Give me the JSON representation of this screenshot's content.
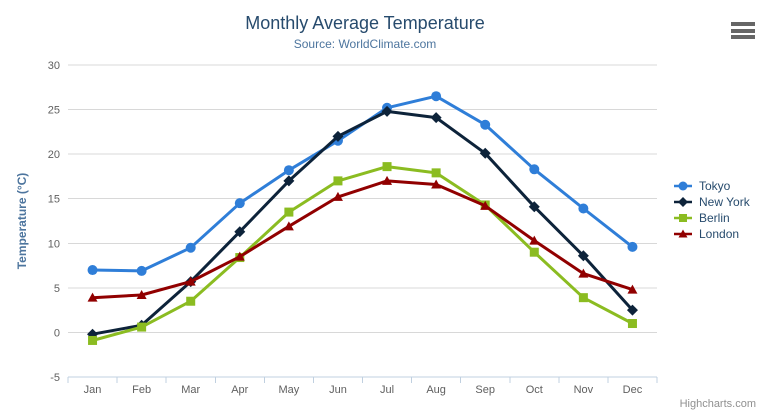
{
  "header": {
    "title": "Monthly Average Temperature",
    "subtitle": "Source: WorldClimate.com"
  },
  "credit": "Highcharts.com",
  "chart_data": {
    "type": "line",
    "title": "Monthly Average Temperature",
    "subtitle": "Source: WorldClimate.com",
    "categories": [
      "Jan",
      "Feb",
      "Mar",
      "Apr",
      "May",
      "Jun",
      "Jul",
      "Aug",
      "Sep",
      "Oct",
      "Nov",
      "Dec"
    ],
    "series": [
      {
        "name": "Tokyo",
        "color": "#2f7ed8",
        "marker": "circle",
        "values": [
          7.0,
          6.9,
          9.5,
          14.5,
          18.2,
          21.5,
          25.2,
          26.5,
          23.3,
          18.3,
          13.9,
          9.6
        ]
      },
      {
        "name": "New York",
        "color": "#0d233a",
        "marker": "diamond",
        "values": [
          -0.2,
          0.8,
          5.7,
          11.3,
          17.0,
          22.0,
          24.8,
          24.1,
          20.1,
          14.1,
          8.6,
          2.5
        ]
      },
      {
        "name": "Berlin",
        "color": "#8bbc21",
        "marker": "square",
        "values": [
          -0.9,
          0.6,
          3.5,
          8.4,
          13.5,
          17.0,
          18.6,
          17.9,
          14.3,
          9.0,
          3.9,
          1.0
        ]
      },
      {
        "name": "London",
        "color": "#910000",
        "marker": "triangle",
        "values": [
          3.9,
          4.2,
          5.7,
          8.5,
          11.9,
          15.2,
          17.0,
          16.6,
          14.2,
          10.3,
          6.6,
          4.8
        ]
      }
    ],
    "xlabel": "",
    "ylabel": "Temperature (°C)",
    "ylim": [
      -5,
      30
    ],
    "ytick_step": 5,
    "grid": true,
    "legend_position": "right"
  },
  "colors": {
    "title": "#274b6d",
    "subtitle": "#4d759e",
    "axis_labels": "#606060",
    "grid_line": "#d8d8d8",
    "axis_line": "#c0d0e0",
    "legend_text": "#274b6d",
    "credit": "#909090",
    "menu_icon": "#666666"
  }
}
